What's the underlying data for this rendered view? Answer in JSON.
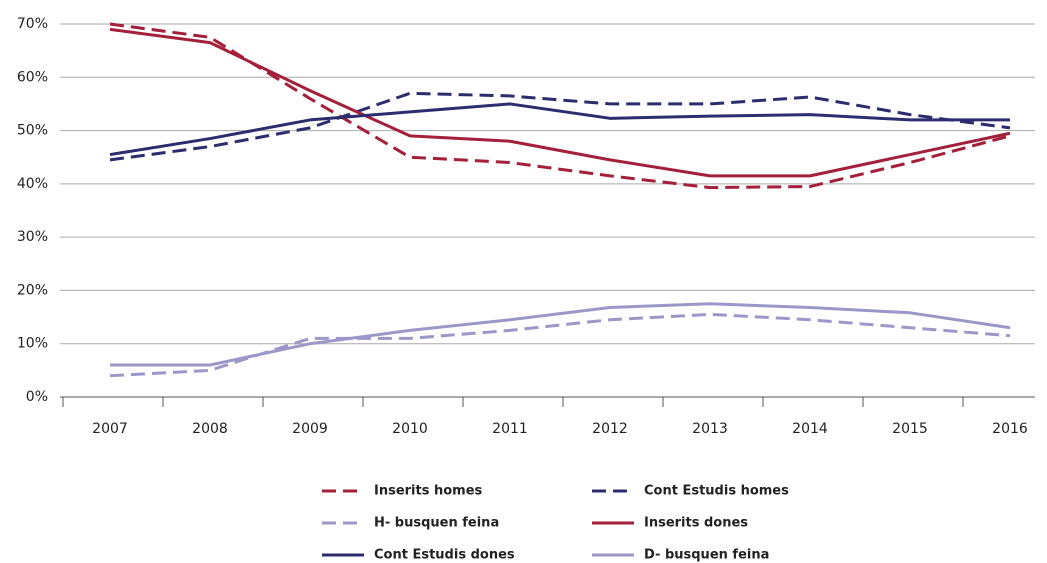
{
  "chart_data": {
    "type": "line",
    "categories": [
      "2007",
      "2008",
      "2009",
      "2010",
      "2011",
      "2012",
      "2013",
      "2014",
      "2015",
      "2016"
    ],
    "ylim": [
      0,
      70
    ],
    "yticks": [
      {
        "value": 0,
        "label": "0%"
      },
      {
        "value": 10,
        "label": "10%"
      },
      {
        "value": 20,
        "label": "20%"
      },
      {
        "value": 30,
        "label": "30%"
      },
      {
        "value": 40,
        "label": "40%"
      },
      {
        "value": 50,
        "label": "50%"
      },
      {
        "value": 60,
        "label": "60%"
      },
      {
        "value": 70,
        "label": "70%"
      }
    ],
    "grid": true,
    "series": [
      {
        "name": "Inserits homes",
        "color": "#a31f3a",
        "dashed": true,
        "values": [
          70,
          67.5,
          56,
          45,
          44,
          41.5,
          39.3,
          39.5,
          44,
          49
        ]
      },
      {
        "name": "Cont Estudis homes",
        "color": "#2b2d6e",
        "dashed": true,
        "values": [
          44.5,
          47,
          50.5,
          57,
          56.5,
          55,
          55,
          56.3,
          53,
          50.5
        ]
      },
      {
        "name": "H- busquen feina",
        "color": "#9b97c9",
        "dashed": true,
        "values": [
          4,
          5,
          11,
          11,
          12.5,
          14.5,
          15.5,
          14.5,
          13,
          11.5
        ]
      },
      {
        "name": "Inserits dones",
        "color": "#a31f3a",
        "dashed": false,
        "values": [
          69,
          66.5,
          57.5,
          49,
          48,
          44.5,
          41.5,
          41.5,
          45.5,
          49.5
        ]
      },
      {
        "name": "Cont Estudis dones",
        "color": "#2b2d6e",
        "dashed": false,
        "values": [
          45.5,
          48.5,
          52,
          53.5,
          55,
          52.3,
          52.7,
          53,
          52,
          52
        ]
      },
      {
        "name": "D- busquen feina",
        "color": "#9b97c9",
        "dashed": false,
        "values": [
          6,
          6,
          10,
          12.5,
          14.5,
          16.8,
          17.5,
          16.8,
          15.8,
          13
        ]
      }
    ]
  }
}
